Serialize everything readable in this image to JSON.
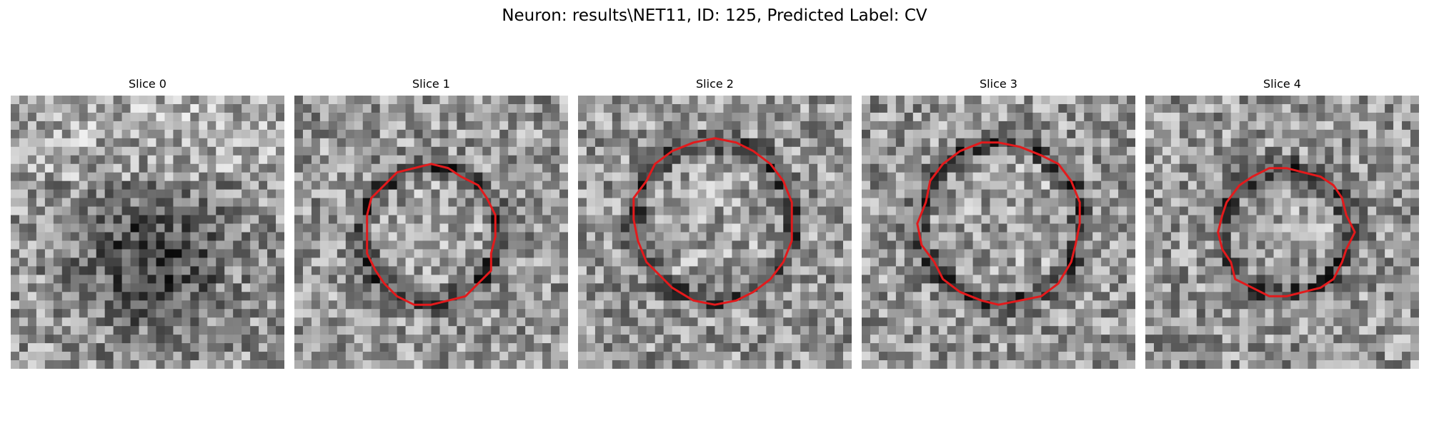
{
  "figure": {
    "title": "Neuron: results\\NET11, ID: 125, Predicted Label: CV"
  },
  "panels": [
    {
      "title": "Slice 0",
      "contour": false
    },
    {
      "title": "Slice 1",
      "contour": true
    },
    {
      "title": "Slice 2",
      "contour": true
    },
    {
      "title": "Slice 3",
      "contour": true
    },
    {
      "title": "Slice 4",
      "contour": true
    }
  ],
  "colors": {
    "contour": "#e31a1c",
    "background": "#ffffff"
  }
}
